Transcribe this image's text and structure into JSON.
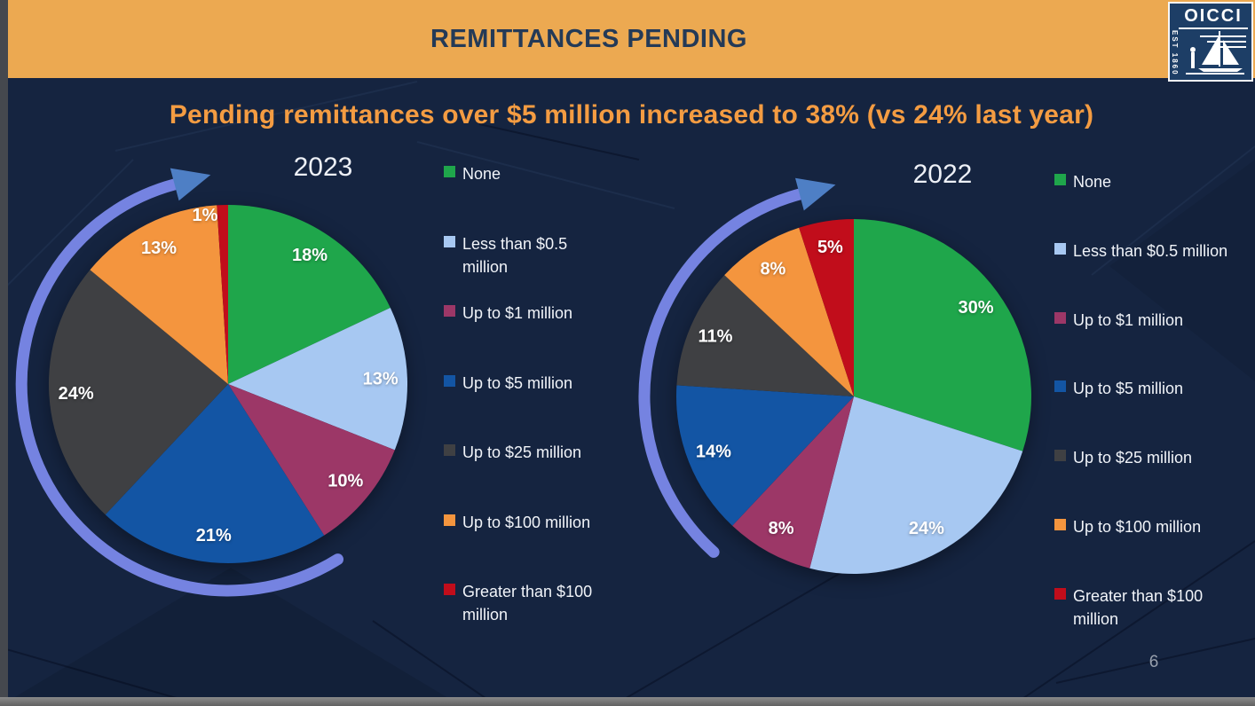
{
  "slide": {
    "header_title": "REMITTANCES PENDING",
    "logo": {
      "org": "OICCI",
      "established": "EST 1860"
    },
    "subtitle": "Pending remittances over $5 million increased to 38% (vs 24% last year)",
    "page_number": "6"
  },
  "colors": {
    "background": "#152440",
    "header_bg": "#eca951",
    "header_text": "#243a57",
    "subtitle": "#f49c42",
    "arrow_arc": "#7583e1",
    "arrow_head": "#4e7fc5",
    "label_text": "#ffffff",
    "legend_text": "#f1f4f9",
    "page_number": "#98a0ad"
  },
  "chart_data": [
    {
      "type": "pie",
      "title": "2023",
      "categories": [
        "None",
        "Less than $0.5 million",
        "Up to $1 million",
        "Up to $5 million",
        "Up to $25 million",
        "Up to $100 million",
        "Greater than $100 million"
      ],
      "values": [
        18,
        13,
        10,
        21,
        24,
        13,
        1
      ],
      "labels": [
        "18%",
        "13%",
        "10%",
        "21%",
        "24%",
        "13%",
        "1%"
      ],
      "colors": [
        "#1fa64b",
        "#a7c8f2",
        "#9c3767",
        "#1355a4",
        "#3f4043",
        "#f4953e",
        "#c10d1b"
      ],
      "start_angle_deg": 0,
      "direction": "clockwise",
      "legend_position": "right",
      "annotation": "clockwise circular arrow around left side of pie"
    },
    {
      "type": "pie",
      "title": "2022",
      "categories": [
        "None",
        "Less than $0.5 million",
        "Up to $1 million",
        "Up to $5 million",
        "Up to $25 million",
        "Up to $100 million",
        "Greater than $100 million"
      ],
      "values": [
        30,
        24,
        8,
        14,
        11,
        8,
        5
      ],
      "labels": [
        "30%",
        "24%",
        "8%",
        "14%",
        "11%",
        "8%",
        "5%"
      ],
      "colors": [
        "#1fa64b",
        "#a7c8f2",
        "#9c3767",
        "#1355a4",
        "#3f4043",
        "#f4953e",
        "#c10d1b"
      ],
      "start_angle_deg": 0,
      "direction": "clockwise",
      "legend_position": "right",
      "annotation": "clockwise circular arrow around left side of pie"
    }
  ]
}
